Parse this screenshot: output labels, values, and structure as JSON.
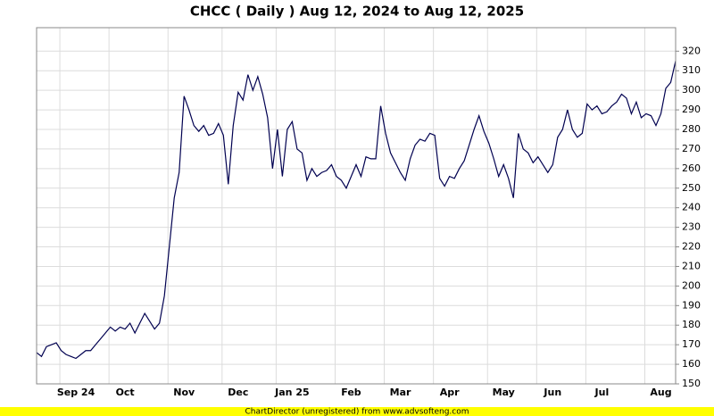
{
  "chart_data": {
    "type": "line",
    "title": "CHCC ( Daily ) Aug 12, 2024 to Aug 12, 2025",
    "footer": "ChartDirector (unregistered) from www.advsofteng.com",
    "color": "#000050",
    "grid": true,
    "ylim": [
      150,
      332
    ],
    "yticks": [
      150,
      160,
      170,
      180,
      190,
      200,
      210,
      220,
      230,
      240,
      250,
      260,
      270,
      280,
      290,
      300,
      310,
      320
    ],
    "categories": [
      null,
      null,
      null,
      null,
      null,
      null,
      null,
      null,
      "Sep 24",
      null,
      null,
      null,
      null,
      null,
      null,
      null,
      null,
      null,
      "Oct",
      null,
      null,
      null,
      null,
      null,
      null,
      null,
      null,
      null,
      null,
      null,
      "Nov",
      null,
      null,
      null,
      null,
      null,
      null,
      null,
      null,
      null,
      null,
      "Dec",
      null,
      null,
      null,
      null,
      null,
      null,
      null,
      null,
      null,
      null,
      "Jan 25",
      null,
      null,
      null,
      null,
      null,
      null,
      null,
      null,
      null,
      null,
      null,
      "Feb",
      null,
      null,
      null,
      null,
      null,
      null,
      null,
      null,
      null,
      "Mar",
      null,
      null,
      null,
      null,
      null,
      null,
      null,
      null,
      null,
      "Apr",
      null,
      null,
      null,
      null,
      null,
      null,
      null,
      null,
      null,
      null,
      "May",
      null,
      null,
      null,
      null,
      null,
      null,
      null,
      null,
      null,
      "Jun",
      null,
      null,
      null,
      null,
      null,
      null,
      null,
      null,
      null,
      "Jul",
      null,
      null,
      null,
      null,
      null,
      null,
      null,
      null,
      null,
      null,
      null,
      "Aug",
      null,
      null,
      null
    ],
    "values": [
      166,
      164,
      169,
      170,
      171,
      167,
      165,
      164,
      163,
      165,
      167,
      167,
      170,
      173,
      176,
      179,
      177,
      179,
      178,
      181,
      176,
      181,
      186,
      182,
      178,
      181,
      195,
      220,
      245,
      258,
      297,
      290,
      282,
      279,
      282,
      277,
      278,
      283,
      277,
      252,
      282,
      299,
      295,
      308,
      300,
      307,
      298,
      286,
      260,
      280,
      256,
      280,
      284,
      270,
      268,
      254,
      260,
      256,
      258,
      259,
      262,
      256,
      254,
      250,
      256,
      262,
      256,
      266,
      265,
      265,
      292,
      278,
      268,
      263,
      258,
      254,
      265,
      272,
      275,
      274,
      278,
      277,
      255,
      251,
      256,
      255,
      260,
      264,
      272,
      280,
      287,
      279,
      273,
      265,
      256,
      262,
      255,
      245,
      278,
      270,
      268,
      263,
      266,
      262,
      258,
      262,
      276,
      280,
      290,
      280,
      276,
      278,
      293,
      290,
      292,
      288,
      289,
      292,
      294,
      298,
      296,
      288,
      294,
      286,
      288,
      287,
      282,
      288,
      301,
      304,
      315
    ]
  }
}
